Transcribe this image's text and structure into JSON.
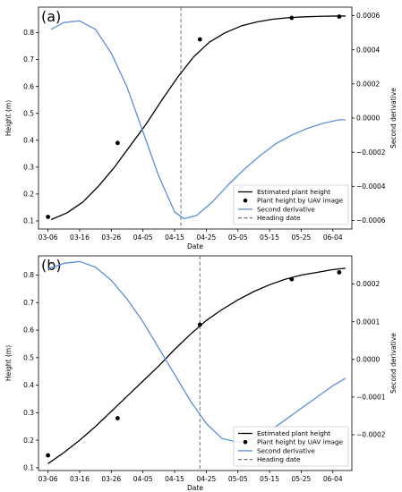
{
  "chart_data": [
    {
      "type": "line",
      "panel_label": "(a)",
      "xlabel": "Date",
      "ylabel": "Height (m)",
      "ylabel_right": "Second derivative",
      "xlim": [
        "03-03",
        "06-10"
      ],
      "ylim": [
        0.07,
        0.895
      ],
      "ylim_right": [
        -0.00065,
        0.00065
      ],
      "x_ticks": [
        "03-06",
        "03-16",
        "03-26",
        "04-05",
        "04-15",
        "04-25",
        "05-05",
        "05-15",
        "05-25",
        "06-04"
      ],
      "y_ticks": [
        "0.1",
        "0.2",
        "0.3",
        "0.4",
        "0.5",
        "0.6",
        "0.7",
        "0.8"
      ],
      "y_right_ticks": [
        "−0.0006",
        "−0.0004",
        "−0.0002",
        "0.0000",
        "0.0002",
        "0.0004",
        "0.0006"
      ],
      "legend": {
        "placement": "lower-right",
        "entries": [
          "Estimated plant height",
          "Plant height by UAV image",
          "Second derivative",
          "Heading date"
        ]
      },
      "series": [
        {
          "name": "Estimated plant height",
          "color": "#000000",
          "axis": "left",
          "x": [
            "03-07",
            "03-12",
            "03-17",
            "03-22",
            "03-27",
            "04-01",
            "04-06",
            "04-11",
            "04-16",
            "04-21",
            "04-26",
            "05-01",
            "05-06",
            "05-11",
            "05-16",
            "05-21",
            "05-26",
            "05-31",
            "06-05",
            "06-08"
          ],
          "values": [
            0.105,
            0.13,
            0.17,
            0.23,
            0.3,
            0.38,
            0.46,
            0.55,
            0.635,
            0.71,
            0.765,
            0.8,
            0.825,
            0.84,
            0.85,
            0.856,
            0.859,
            0.861,
            0.862,
            0.862
          ]
        },
        {
          "name": "Plant height by UAV image",
          "color": "#000000",
          "axis": "left",
          "x": [
            "03-06",
            "03-28",
            "04-23",
            "05-22",
            "06-06"
          ],
          "values": [
            0.115,
            0.39,
            0.775,
            0.855,
            0.86
          ]
        },
        {
          "name": "Second derivative",
          "color": "#5b8fd8",
          "axis": "right",
          "x": [
            "03-07",
            "03-11",
            "03-16",
            "03-21",
            "03-26",
            "03-31",
            "04-05",
            "04-10",
            "04-15",
            "04-18",
            "04-22",
            "04-27",
            "05-02",
            "05-07",
            "05-12",
            "05-17",
            "05-22",
            "05-27",
            "06-01",
            "06-06",
            "06-08"
          ],
          "values": [
            0.00052,
            0.00056,
            0.00057,
            0.00052,
            0.00038,
            0.00018,
            -8e-05,
            -0.00034,
            -0.00055,
            -0.00059,
            -0.00057,
            -0.00049,
            -0.00039,
            -0.0003,
            -0.00022,
            -0.00015,
            -0.0001,
            -6e-05,
            -3e-05,
            -1e-05,
            -1e-05
          ]
        }
      ],
      "heading_date": {
        "name": "Heading date",
        "x": "04-17",
        "color": "#6a7388"
      }
    },
    {
      "type": "line",
      "panel_label": "(b)",
      "xlabel": "Date",
      "ylabel": "Height (m)",
      "ylabel_right": "Second derivative",
      "xlim": [
        "03-03",
        "06-10"
      ],
      "ylim": [
        0.09,
        0.87
      ],
      "ylim_right": [
        -0.000295,
        0.000275
      ],
      "x_ticks": [
        "03-06",
        "03-16",
        "03-26",
        "04-05",
        "04-15",
        "04-25",
        "05-05",
        "05-15",
        "05-25",
        "06-04"
      ],
      "y_ticks": [
        "0.1",
        "0.2",
        "0.3",
        "0.4",
        "0.5",
        "0.6",
        "0.7",
        "0.8"
      ],
      "y_right_ticks": [
        "−0.0002",
        "−0.0001",
        "0.0000",
        "0.0001",
        "0.0002"
      ],
      "legend": {
        "placement": "lower-right",
        "entries": [
          "Estimated plant height",
          "Plant height by UAV image",
          "Second derivative",
          "Heading date"
        ]
      },
      "series": [
        {
          "name": "Estimated plant height",
          "color": "#000000",
          "axis": "left",
          "x": [
            "03-06",
            "03-11",
            "03-16",
            "03-21",
            "03-26",
            "03-31",
            "04-05",
            "04-10",
            "04-15",
            "04-20",
            "04-25",
            "04-30",
            "05-05",
            "05-10",
            "05-15",
            "05-20",
            "05-25",
            "05-30",
            "06-04",
            "06-08"
          ],
          "values": [
            0.115,
            0.155,
            0.2,
            0.25,
            0.305,
            0.36,
            0.415,
            0.47,
            0.53,
            0.585,
            0.635,
            0.675,
            0.71,
            0.74,
            0.765,
            0.785,
            0.8,
            0.81,
            0.82,
            0.825
          ]
        },
        {
          "name": "Plant height by UAV image",
          "color": "#000000",
          "axis": "left",
          "x": [
            "03-06",
            "03-28",
            "04-23",
            "05-22",
            "06-06"
          ],
          "values": [
            0.145,
            0.28,
            0.62,
            0.785,
            0.81
          ]
        },
        {
          "name": "Second derivative",
          "color": "#5b8fd8",
          "axis": "right",
          "x": [
            "03-06",
            "03-11",
            "03-16",
            "03-21",
            "03-26",
            "03-31",
            "04-05",
            "04-10",
            "04-15",
            "04-20",
            "04-25",
            "04-30",
            "05-05",
            "05-10",
            "05-15",
            "05-20",
            "05-25",
            "05-30",
            "06-04",
            "06-08"
          ],
          "values": [
            0.00024,
            0.000255,
            0.00026,
            0.000245,
            0.00021,
            0.00016,
            0.0001,
            3e-05,
            -4e-05,
            -0.00011,
            -0.00017,
            -0.00021,
            -0.00022,
            -0.00021,
            -0.00019,
            -0.00016,
            -0.00013,
            -0.0001,
            -7e-05,
            -5e-05
          ]
        }
      ],
      "heading_date": {
        "name": "Heading date",
        "x": "04-23",
        "color": "#6a7388"
      }
    }
  ]
}
